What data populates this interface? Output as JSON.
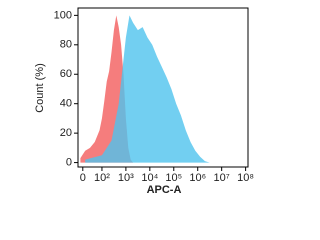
{
  "chart_data": {
    "type": "area",
    "x_label": "APC-A",
    "y_label": "Count (%)",
    "xlim": [
      1,
      8.1
    ],
    "ylim": [
      -3,
      105
    ],
    "xticks": [
      {
        "value": 1.2,
        "label": "0"
      },
      {
        "value": 2,
        "label": "10²"
      },
      {
        "value": 3,
        "label": "10³"
      },
      {
        "value": 4,
        "label": "10⁴"
      },
      {
        "value": 5,
        "label": "10⁵"
      },
      {
        "value": 6,
        "label": "10⁶"
      },
      {
        "value": 7,
        "label": "10⁷"
      },
      {
        "value": 8,
        "label": "10⁸"
      }
    ],
    "yticks": [
      0,
      20,
      40,
      60,
      80,
      100
    ],
    "series": [
      {
        "color": "#f47676",
        "x": [
          1.1,
          1.3,
          1.5,
          1.7,
          1.9,
          2.0,
          2.1,
          2.2,
          2.3,
          2.4,
          2.5,
          2.6,
          2.7,
          2.8,
          2.9,
          3.0,
          3.1,
          3.2,
          3.3
        ],
        "values": [
          3,
          8,
          10,
          14,
          22,
          30,
          42,
          55,
          62,
          75,
          90,
          100,
          92,
          80,
          60,
          30,
          10,
          2,
          0
        ]
      },
      {
        "color": "#4fc3ee",
        "x": [
          1.3,
          2.0,
          2.4,
          2.7,
          2.9,
          3.0,
          3.15,
          3.3,
          3.5,
          3.7,
          3.9,
          4.1,
          4.3,
          4.5,
          4.7,
          4.9,
          5.1,
          5.3,
          5.5,
          5.7,
          5.9,
          6.1,
          6.3,
          6.5
        ],
        "values": [
          2,
          5,
          15,
          40,
          70,
          85,
          100,
          95,
          90,
          92,
          85,
          80,
          72,
          65,
          58,
          50,
          40,
          32,
          22,
          14,
          8,
          4,
          1,
          0
        ]
      }
    ]
  }
}
